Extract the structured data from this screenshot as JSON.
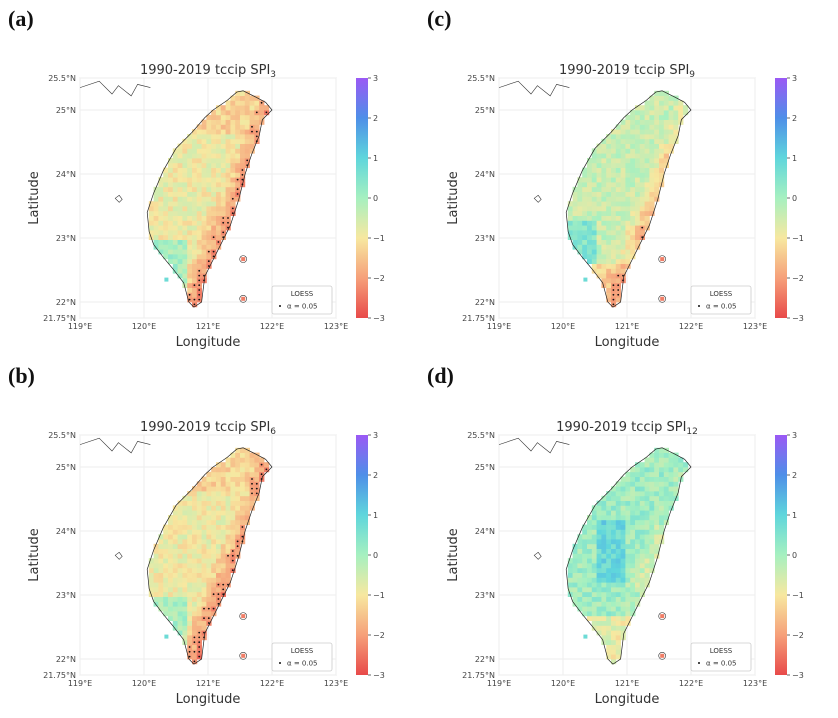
{
  "colors": {
    "gradient": [
      "#e84a4a",
      "#f6a07a",
      "#f7e8a0",
      "#a6f0c0",
      "#5fd6dc",
      "#4e8fe8",
      "#9b59f5"
    ]
  },
  "shared": {
    "xlabel": "Longitude",
    "ylabel": "Latitude",
    "xticks": [
      "119°E",
      "120°E",
      "121°E",
      "122°E",
      "123°E"
    ],
    "yticks": [
      "25.5°N",
      "25°N",
      "24°N",
      "23°N",
      "22°N",
      "21.75°N"
    ],
    "cbar_ticks": [
      "3",
      "2",
      "1",
      "0",
      "−1",
      "−2",
      "−3"
    ],
    "legend_title": "LOESS",
    "legend_entry": "α = 0.05"
  },
  "chart_data": [
    {
      "letter": "(a)",
      "type": "heatmap",
      "title_prefix": "1990-2019 tccip SPI",
      "title_sub": "3",
      "xlim": [
        119,
        123
      ],
      "ylim": [
        21.75,
        25.5
      ],
      "clim": [
        -3,
        3
      ],
      "significant_region": "east and northeast Taiwan",
      "overall_tendency": "negative"
    },
    {
      "letter": "(c)",
      "type": "heatmap",
      "title_prefix": "1990-2019 tccip SPI",
      "title_sub": "9",
      "xlim": [
        119,
        123
      ],
      "ylim": [
        21.75,
        25.5
      ],
      "clim": [
        -3,
        3
      ],
      "significant_region": "eastern mountains and south",
      "overall_tendency": "mixed"
    },
    {
      "letter": "(b)",
      "type": "heatmap",
      "title_prefix": "1990-2019 tccip SPI",
      "title_sub": "6",
      "xlim": [
        119,
        123
      ],
      "ylim": [
        21.75,
        25.5
      ],
      "clim": [
        -3,
        3
      ],
      "significant_region": "east and northeast Taiwan",
      "overall_tendency": "negative"
    },
    {
      "letter": "(d)",
      "type": "heatmap",
      "title_prefix": "1990-2019 tccip SPI",
      "title_sub": "12",
      "xlim": [
        119,
        123
      ],
      "ylim": [
        21.75,
        25.5
      ],
      "clim": [
        -3,
        3
      ],
      "significant_region": "east-central and south",
      "overall_tendency": "mixed"
    }
  ]
}
